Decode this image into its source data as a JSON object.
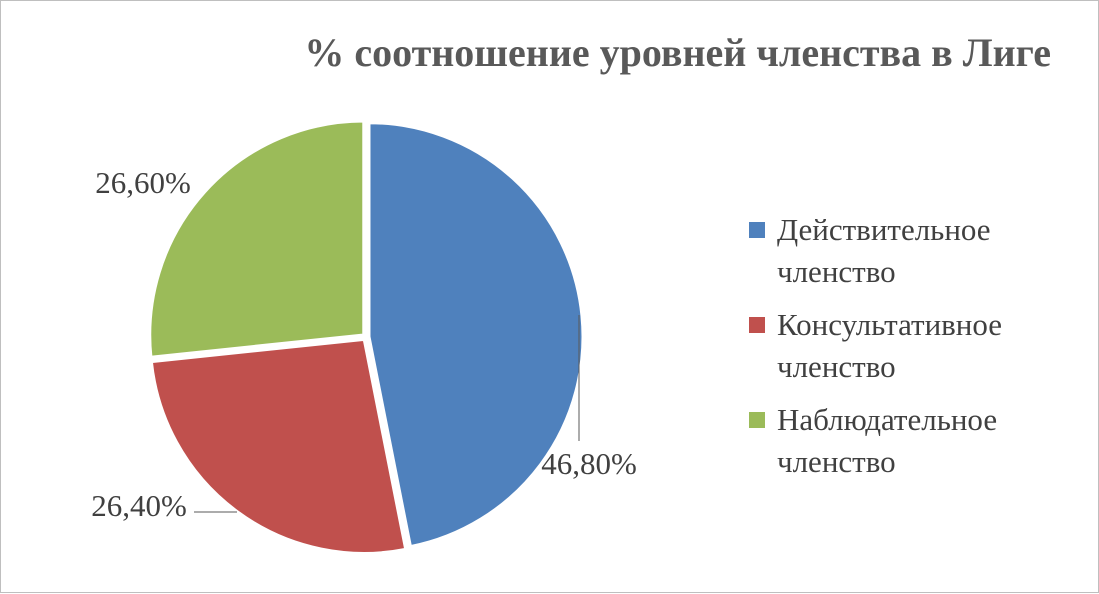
{
  "chart_data": {
    "type": "pie",
    "title": "% соотношение уровней членства в Лиге",
    "categories": [
      "Действительное членство",
      "Консультативное членство",
      "Наблюдательное членство"
    ],
    "values": [
      46.8,
      26.4,
      26.6
    ],
    "value_labels": [
      "46,80%",
      "26,40%",
      "26,60%"
    ],
    "colors": [
      "#4f81bd",
      "#c0504d",
      "#9bbb59"
    ],
    "legend_position": "right",
    "legend": [
      {
        "line1": "Действительное",
        "line2": "членство"
      },
      {
        "line1": "Консультативное",
        "line2": "членство"
      },
      {
        "line1": "Наблюдательное",
        "line2": "членство"
      }
    ]
  }
}
